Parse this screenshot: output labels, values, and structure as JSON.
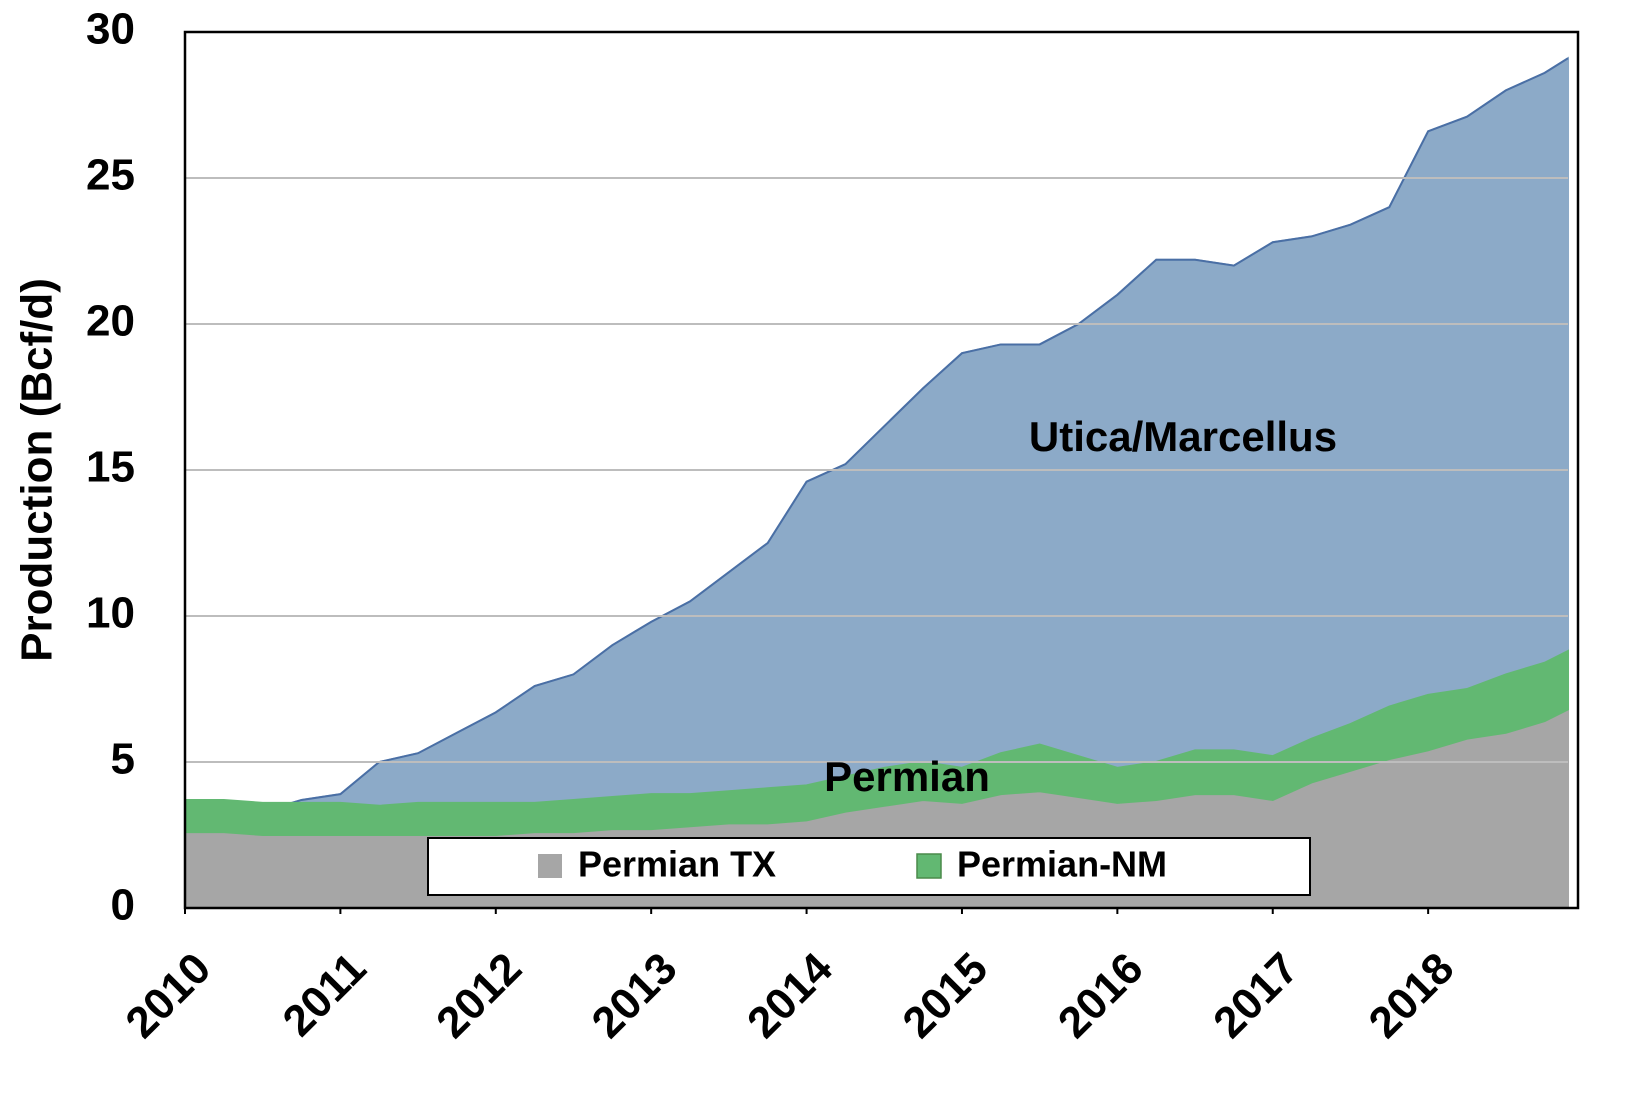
{
  "chart_data": {
    "type": "area",
    "y_label": "Production (Bcf/d)",
    "x": [
      2010,
      2010.25,
      2010.5,
      2010.75,
      2011,
      2011.25,
      2011.5,
      2011.75,
      2012,
      2012.25,
      2012.5,
      2012.75,
      2013,
      2013.25,
      2013.5,
      2013.75,
      2014,
      2014.25,
      2014.5,
      2014.75,
      2015,
      2015.25,
      2015.5,
      2015.75,
      2016,
      2016.25,
      2016.5,
      2016.75,
      2017,
      2017.25,
      2017.5,
      2017.75,
      2018,
      2018.25,
      2018.5,
      2018.75,
      2018.9
    ],
    "series": [
      {
        "name": "Utica/Marcellus",
        "color": "#8caac8",
        "stacked": false,
        "legend": false,
        "values": [
          2.7,
          2.9,
          3.3,
          3.7,
          3.9,
          5.0,
          5.3,
          6.0,
          6.7,
          7.6,
          8.0,
          9.0,
          9.8,
          10.5,
          11.5,
          12.5,
          14.6,
          15.2,
          16.5,
          17.8,
          19.0,
          19.3,
          19.3,
          20.0,
          21.0,
          22.2,
          22.2,
          22.0,
          22.8,
          23.0,
          23.4,
          24.0,
          26.6,
          27.1,
          28.0,
          28.6,
          29.1
        ]
      },
      {
        "name": "Permian TX",
        "color": "#a6a6a6",
        "stacked": true,
        "legend": true,
        "values": [
          2.6,
          2.6,
          2.5,
          2.5,
          2.5,
          2.5,
          2.5,
          2.5,
          2.5,
          2.6,
          2.6,
          2.7,
          2.7,
          2.8,
          2.9,
          2.9,
          3.0,
          3.3,
          3.5,
          3.7,
          3.6,
          3.9,
          4.0,
          3.8,
          3.6,
          3.7,
          3.9,
          3.9,
          3.7,
          4.3,
          4.7,
          5.1,
          5.4,
          5.8,
          6.0,
          6.4,
          6.8
        ]
      },
      {
        "name": "Permian-NM",
        "color": "#62b872",
        "stacked": true,
        "legend": true,
        "values": [
          1.1,
          1.1,
          1.1,
          1.1,
          1.1,
          1.0,
          1.1,
          1.1,
          1.1,
          1.0,
          1.1,
          1.1,
          1.2,
          1.1,
          1.1,
          1.2,
          1.2,
          1.2,
          1.3,
          1.3,
          1.2,
          1.4,
          1.6,
          1.4,
          1.2,
          1.3,
          1.5,
          1.5,
          1.5,
          1.5,
          1.6,
          1.8,
          1.9,
          1.7,
          2.0,
          2.0,
          2.0
        ]
      }
    ],
    "annotations": [
      "Utica/Marcellus",
      "Permian"
    ],
    "xlim": [
      2010,
      2018.9
    ],
    "xticks": [
      2010,
      2011,
      2012,
      2013,
      2014,
      2015,
      2016,
      2017,
      2018
    ],
    "ylim": [
      0,
      30
    ],
    "yticks": [
      0,
      5,
      10,
      15,
      20,
      25,
      30
    ],
    "grid": true
  }
}
